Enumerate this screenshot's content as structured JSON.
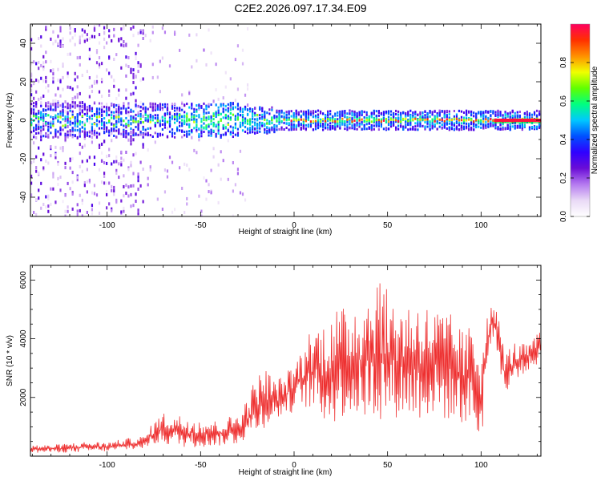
{
  "title": "C2E2.2026.097.17.34.E09",
  "chart_data": [
    {
      "type": "heatmap",
      "xlabel": "Height of straight line (km)",
      "ylabel": "Frequency (Hz)",
      "xlim": [
        -141,
        132
      ],
      "ylim": [
        -50,
        50
      ],
      "x_ticks": [
        -100,
        -50,
        0,
        50,
        100
      ],
      "y_ticks": [
        -40,
        -20,
        0,
        20,
        40
      ],
      "colorbar": {
        "label": "Normalized spectral amplitude",
        "range": [
          0.0,
          1.0
        ],
        "ticks": [
          0.0,
          0.2,
          0.4,
          0.6,
          0.8
        ],
        "colormap": [
          "#ffffff",
          "#e9d9f6",
          "#b57af0",
          "#6a0dd6",
          "#3000ff",
          "#0050ff",
          "#00c8ff",
          "#00ff80",
          "#60ff00",
          "#f0ff00",
          "#ff9000",
          "#ff3000",
          "#ff0060"
        ]
      },
      "features": {
        "signal_center_hz": 0,
        "noisy_region_km": [
          -141,
          -25
        ],
        "strong_line_start_km": -10
      }
    },
    {
      "type": "line",
      "xlabel": "Height of straight line (km)",
      "ylabel": "SNR (10 * v/v)",
      "xlim": [
        -141,
        132
      ],
      "ylim": [
        0,
        6500
      ],
      "x_ticks": [
        -100,
        -50,
        0,
        50,
        100
      ],
      "y_ticks": [
        2000,
        4000,
        6000
      ],
      "series": [
        {
          "name": "SNR",
          "color": "#ee3030",
          "x": [
            -141,
            -130,
            -120,
            -110,
            -100,
            -90,
            -80,
            -75,
            -70,
            -60,
            -50,
            -40,
            -30,
            -25,
            -20,
            -15,
            -10,
            -5,
            0,
            5,
            10,
            15,
            20,
            25,
            30,
            35,
            40,
            45,
            50,
            55,
            60,
            65,
            70,
            75,
            80,
            85,
            90,
            95,
            100,
            103,
            107,
            110,
            113,
            118,
            125,
            132
          ],
          "upper": [
            400,
            380,
            450,
            500,
            480,
            600,
            700,
            1200,
            1500,
            1400,
            1300,
            1200,
            1500,
            2000,
            2800,
            3000,
            2600,
            2800,
            3200,
            3800,
            4600,
            4500,
            5200,
            5000,
            5300,
            5500,
            5700,
            6400,
            5600,
            5300,
            5300,
            5400,
            5200,
            5100,
            5000,
            4800,
            4300,
            4500,
            4200,
            5000,
            5200,
            4600,
            3600,
            3900,
            3800,
            4300
          ],
          "lower": [
            100,
            120,
            120,
            150,
            160,
            200,
            250,
            400,
            400,
            300,
            300,
            350,
            400,
            600,
            800,
            1000,
            1200,
            1400,
            1500,
            1700,
            1500,
            1200,
            1000,
            1300,
            1300,
            1200,
            1300,
            1200,
            1300,
            1300,
            1300,
            1200,
            1300,
            1300,
            1200,
            1200,
            1100,
            1000,
            100,
            3000,
            4200,
            3000,
            1900,
            2600,
            2900,
            3200
          ]
        }
      ]
    }
  ]
}
